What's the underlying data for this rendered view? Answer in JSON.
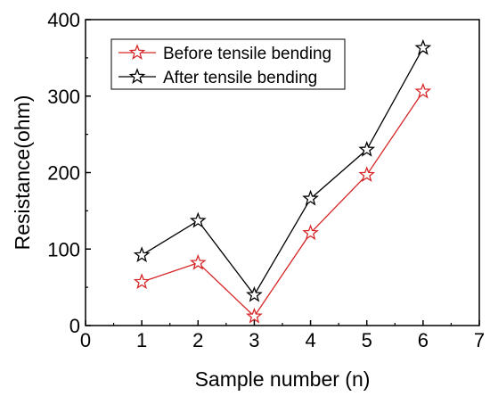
{
  "chart_data": {
    "type": "line",
    "xlabel": "Sample number (n)",
    "ylabel": "Resistance(ohm)",
    "xlim": [
      0,
      7
    ],
    "ylim": [
      0,
      400
    ],
    "x_ticks": [
      "0",
      "1",
      "2",
      "3",
      "4",
      "5",
      "6",
      "7"
    ],
    "y_ticks": [
      "0",
      "100",
      "200",
      "300",
      "400"
    ],
    "grid": false,
    "legend_position": "top-left",
    "marker": "star-open",
    "series": [
      {
        "name": "Before tensile bending",
        "color": "#d62728",
        "x": [
          1,
          2,
          3,
          4,
          5,
          6
        ],
        "values": [
          57,
          82,
          12,
          121,
          197,
          306
        ]
      },
      {
        "name": "After tensile bending",
        "color": "#000000",
        "x": [
          1,
          2,
          3,
          4,
          5,
          6
        ],
        "values": [
          92,
          137,
          40,
          166,
          230,
          363
        ]
      }
    ]
  }
}
